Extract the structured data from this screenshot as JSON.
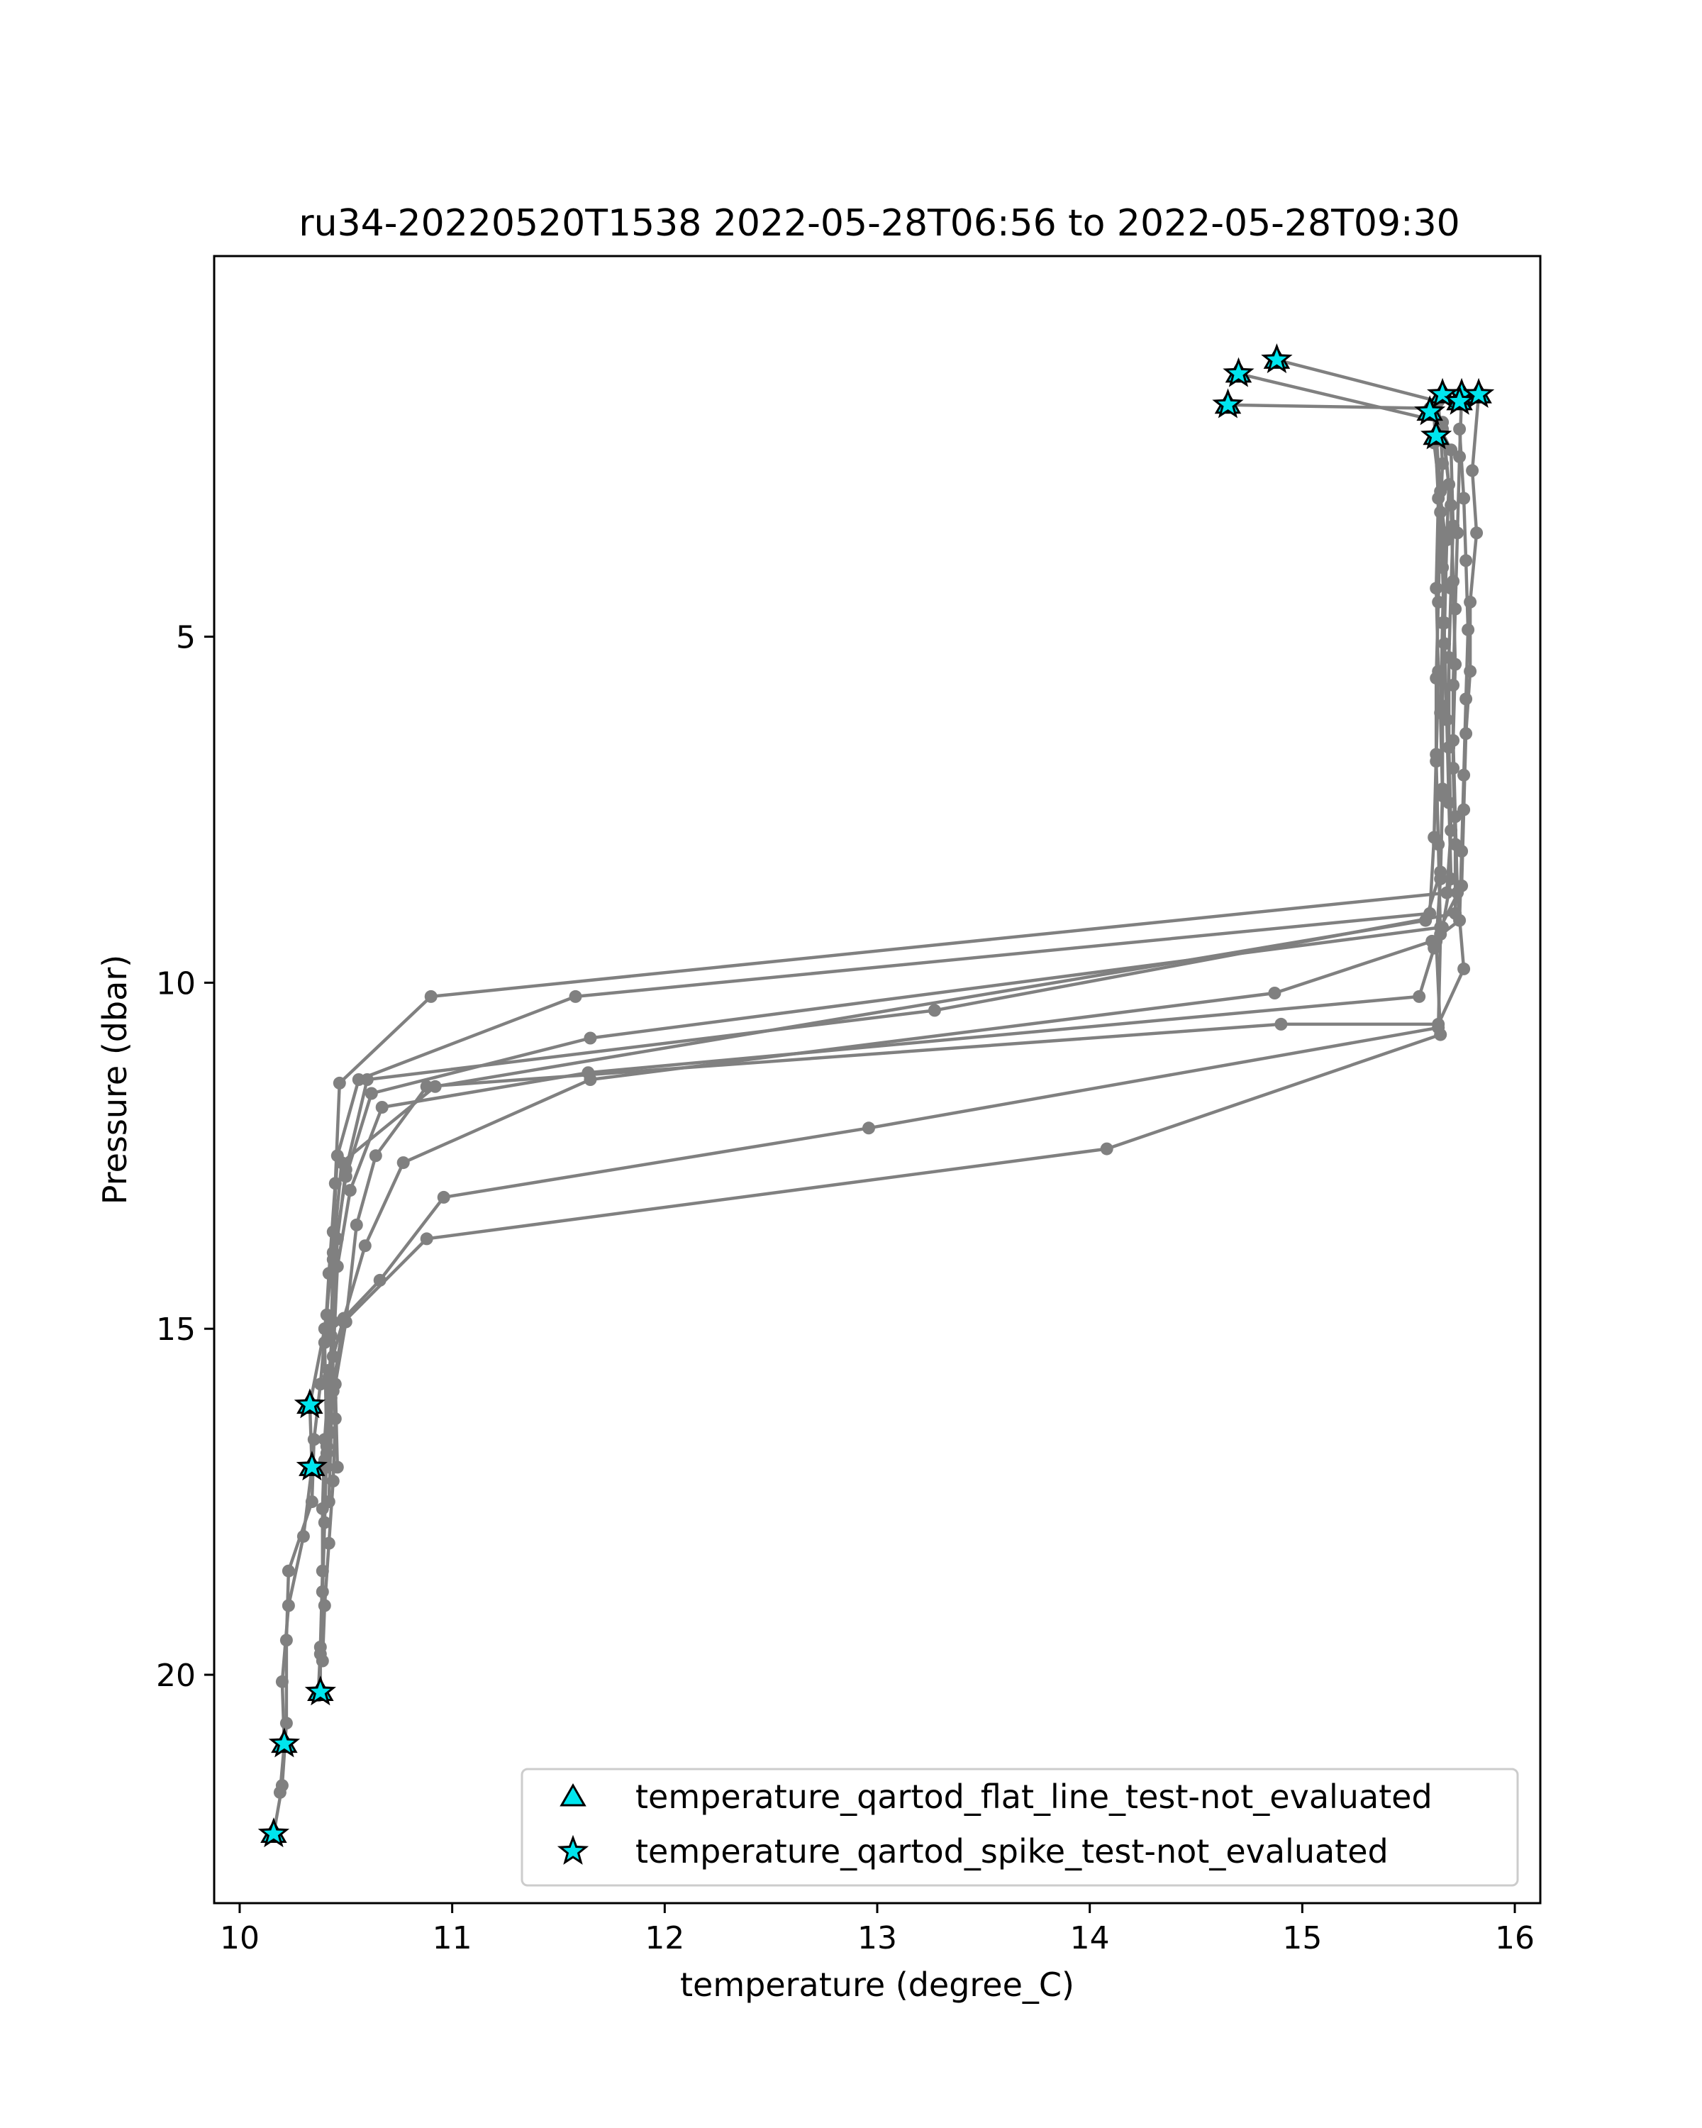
{
  "chart_data": {
    "type": "line",
    "title": "ru34-20220520T1538 2022-05-28T06:56 to 2022-05-28T09:30",
    "xlabel": "temperature (degree_C)",
    "ylabel": "Pressure (dbar)",
    "xlim": [
      9.88,
      16.12
    ],
    "ylim": [
      23.3,
      -0.5
    ],
    "y_inverted": true,
    "x_ticks": [
      10,
      11,
      12,
      13,
      14,
      15,
      16
    ],
    "y_ticks": [
      5,
      10,
      15,
      20
    ],
    "grid": false,
    "line_color": "#808080",
    "marker_color": "#808080",
    "flag_color": "#00e5ee",
    "flag_edge_color": "#000000",
    "legend": {
      "placement": "lower-right",
      "entries": [
        {
          "label": "temperature_qartod_flat_line_test-not_evaluated",
          "marker": "triangle"
        },
        {
          "label": "temperature_qartod_spike_test-not_evaluated",
          "marker": "star"
        }
      ]
    },
    "series": [
      {
        "points": [
          [
            14.88,
            1.0
          ],
          [
            15.64,
            1.6
          ],
          [
            15.66,
            2.5
          ],
          [
            15.65,
            3.2
          ],
          [
            15.64,
            4.5
          ],
          [
            15.63,
            5.6
          ],
          [
            15.63,
            6.7
          ],
          [
            15.62,
            7.9
          ],
          [
            15.6,
            9.0
          ],
          [
            11.58,
            10.2
          ],
          [
            10.56,
            11.4
          ],
          [
            10.46,
            12.5
          ],
          [
            10.44,
            13.6
          ],
          [
            10.41,
            14.8
          ],
          [
            10.38,
            15.8
          ],
          [
            10.35,
            16.6
          ],
          [
            10.34,
            17.5
          ],
          [
            10.23,
            18.5
          ],
          [
            10.22,
            19.5
          ],
          [
            10.22,
            20.7
          ],
          [
            10.2,
            21.6
          ],
          [
            10.16,
            22.3
          ]
        ]
      },
      {
        "points": [
          [
            14.7,
            1.2
          ],
          [
            15.66,
            1.9
          ],
          [
            15.69,
            2.8
          ],
          [
            15.68,
            3.6
          ],
          [
            15.67,
            4.8
          ],
          [
            15.66,
            6.0
          ],
          [
            15.66,
            7.2
          ],
          [
            15.65,
            8.4
          ],
          [
            15.58,
            9.1
          ],
          [
            10.92,
            11.5
          ],
          [
            10.48,
            12.6
          ],
          [
            10.44,
            13.9
          ],
          [
            10.4,
            15.0
          ],
          [
            10.33,
            16.1
          ],
          [
            10.34,
            17.0
          ],
          [
            10.3,
            18.0
          ],
          [
            10.23,
            19.0
          ],
          [
            10.2,
            20.1
          ],
          [
            10.21,
            21.0
          ],
          [
            10.19,
            21.7
          ]
        ]
      },
      {
        "points": [
          [
            14.65,
            1.65
          ],
          [
            15.6,
            1.7
          ],
          [
            15.7,
            2.3
          ],
          [
            15.71,
            3.4
          ],
          [
            15.7,
            4.3
          ],
          [
            15.69,
            5.3
          ],
          [
            15.69,
            6.6
          ],
          [
            15.7,
            7.8
          ],
          [
            15.68,
            8.7
          ],
          [
            10.9,
            10.2
          ],
          [
            10.47,
            11.45
          ],
          [
            10.45,
            12.9
          ],
          [
            10.42,
            14.2
          ],
          [
            10.4,
            15.2
          ],
          [
            10.41,
            16.7
          ],
          [
            10.4,
            17.8
          ],
          [
            10.39,
            18.8
          ],
          [
            10.38,
            19.7
          ],
          [
            10.38,
            20.25
          ]
        ]
      },
      {
        "points": [
          [
            15.75,
            1.5
          ],
          [
            15.74,
            2.4
          ],
          [
            15.73,
            3.5
          ],
          [
            15.72,
            4.6
          ],
          [
            15.71,
            5.7
          ],
          [
            15.71,
            6.9
          ],
          [
            15.72,
            8.0
          ],
          [
            15.72,
            9.0
          ],
          [
            13.27,
            10.4
          ],
          [
            10.6,
            11.4
          ],
          [
            10.5,
            12.7
          ],
          [
            10.46,
            13.7
          ],
          [
            10.44,
            14.9
          ],
          [
            10.42,
            15.7
          ],
          [
            10.4,
            16.6
          ],
          [
            10.39,
            17.6
          ],
          [
            10.39,
            18.5
          ],
          [
            10.38,
            19.6
          ],
          [
            10.37,
            20.3
          ]
        ]
      },
      {
        "points": [
          [
            15.83,
            1.5
          ],
          [
            15.8,
            2.6
          ],
          [
            15.82,
            3.5
          ],
          [
            15.79,
            4.5
          ],
          [
            15.79,
            5.5
          ],
          [
            15.77,
            6.4
          ],
          [
            15.76,
            7.5
          ],
          [
            15.75,
            8.6
          ],
          [
            15.65,
            9.2
          ],
          [
            11.65,
            10.8
          ],
          [
            10.62,
            11.6
          ],
          [
            10.5,
            12.8
          ],
          [
            10.44,
            14.0
          ],
          [
            10.43,
            15.1
          ],
          [
            10.45,
            16.3
          ],
          [
            10.44,
            17.2
          ],
          [
            10.42,
            18.1
          ],
          [
            10.4,
            19.0
          ],
          [
            10.39,
            19.8
          ]
        ]
      },
      {
        "points": [
          [
            15.63,
            2.1
          ],
          [
            15.65,
            2.9
          ],
          [
            15.66,
            4.0
          ],
          [
            15.67,
            5.1
          ],
          [
            15.68,
            6.2
          ],
          [
            15.69,
            7.4
          ],
          [
            15.7,
            8.5
          ],
          [
            15.66,
            9.2
          ],
          [
            15.62,
            9.5
          ],
          [
            15.55,
            10.2
          ],
          [
            11.64,
            11.3
          ],
          [
            10.67,
            11.8
          ],
          [
            10.52,
            13.0
          ],
          [
            10.46,
            14.1
          ],
          [
            10.44,
            15.4
          ],
          [
            10.43,
            16.5
          ],
          [
            10.42,
            17.5
          ]
        ]
      },
      {
        "points": [
          [
            15.74,
            2.0
          ],
          [
            15.76,
            3.0
          ],
          [
            15.77,
            3.9
          ],
          [
            15.78,
            4.9
          ],
          [
            15.77,
            5.9
          ],
          [
            15.76,
            7.0
          ],
          [
            15.75,
            8.1
          ],
          [
            15.74,
            9.1
          ],
          [
            15.61,
            9.4
          ],
          [
            14.87,
            10.15
          ],
          [
            11.65,
            11.4
          ],
          [
            10.77,
            12.6
          ],
          [
            10.59,
            13.8
          ],
          [
            10.49,
            14.85
          ],
          [
            10.44,
            15.9
          ],
          [
            10.4,
            16.9
          ]
        ]
      },
      {
        "points": [
          [
            15.66,
            2.0
          ],
          [
            15.7,
            3.1
          ],
          [
            15.71,
            4.2
          ],
          [
            15.72,
            5.4
          ],
          [
            15.71,
            6.5
          ],
          [
            15.72,
            7.6
          ],
          [
            15.73,
            8.7
          ],
          [
            15.76,
            9.8
          ],
          [
            15.64,
            10.6
          ],
          [
            14.9,
            10.6
          ],
          [
            10.88,
            11.5
          ],
          [
            10.64,
            12.5
          ],
          [
            10.55,
            13.5
          ],
          [
            10.5,
            14.9
          ],
          [
            10.45,
            15.8
          ],
          [
            10.46,
            17.0
          ]
        ]
      },
      {
        "points": [
          [
            15.62,
            1.8
          ],
          [
            15.64,
            3.0
          ],
          [
            15.63,
            4.3
          ],
          [
            15.64,
            5.5
          ],
          [
            15.63,
            6.8
          ],
          [
            15.64,
            8.0
          ],
          [
            15.65,
            9.3
          ],
          [
            15.64,
            10.65
          ],
          [
            12.96,
            12.1
          ],
          [
            10.96,
            13.1
          ],
          [
            10.66,
            14.3
          ],
          [
            10.49,
            14.85
          ],
          [
            10.42,
            15.6
          ],
          [
            10.41,
            16.8
          ]
        ]
      },
      {
        "points": [
          [
            15.62,
            2.2
          ],
          [
            15.67,
            3.5
          ],
          [
            15.66,
            4.8
          ],
          [
            15.65,
            6.1
          ],
          [
            15.66,
            7.3
          ],
          [
            15.65,
            8.5
          ],
          [
            15.63,
            9.4
          ],
          [
            15.65,
            10.75
          ],
          [
            14.08,
            12.4
          ],
          [
            10.88,
            13.7
          ],
          [
            10.49,
            14.9
          ],
          [
            10.43,
            16.0
          ],
          [
            10.41,
            17.0
          ]
        ]
      }
    ],
    "flagged_points": {
      "temperature_qartod_flat_line_test-not_evaluated": [
        [
          14.88,
          1.0
        ],
        [
          14.7,
          1.2
        ],
        [
          14.65,
          1.65
        ],
        [
          15.75,
          1.5
        ],
        [
          15.83,
          1.5
        ],
        [
          15.66,
          1.5
        ],
        [
          15.6,
          1.75
        ],
        [
          15.74,
          1.6
        ],
        [
          15.63,
          2.1
        ],
        [
          10.33,
          16.1
        ],
        [
          10.34,
          17.0
        ],
        [
          10.38,
          20.25
        ],
        [
          10.21,
          21.0
        ],
        [
          10.16,
          22.3
        ]
      ],
      "temperature_qartod_spike_test-not_evaluated": [
        [
          14.88,
          1.0
        ],
        [
          14.7,
          1.2
        ],
        [
          14.65,
          1.65
        ],
        [
          15.75,
          1.5
        ],
        [
          15.83,
          1.5
        ],
        [
          15.66,
          1.5
        ],
        [
          15.6,
          1.75
        ],
        [
          15.74,
          1.6
        ],
        [
          15.63,
          2.1
        ],
        [
          10.33,
          16.1
        ],
        [
          10.34,
          17.0
        ],
        [
          10.38,
          20.25
        ],
        [
          10.21,
          21.0
        ],
        [
          10.16,
          22.3
        ]
      ]
    }
  }
}
